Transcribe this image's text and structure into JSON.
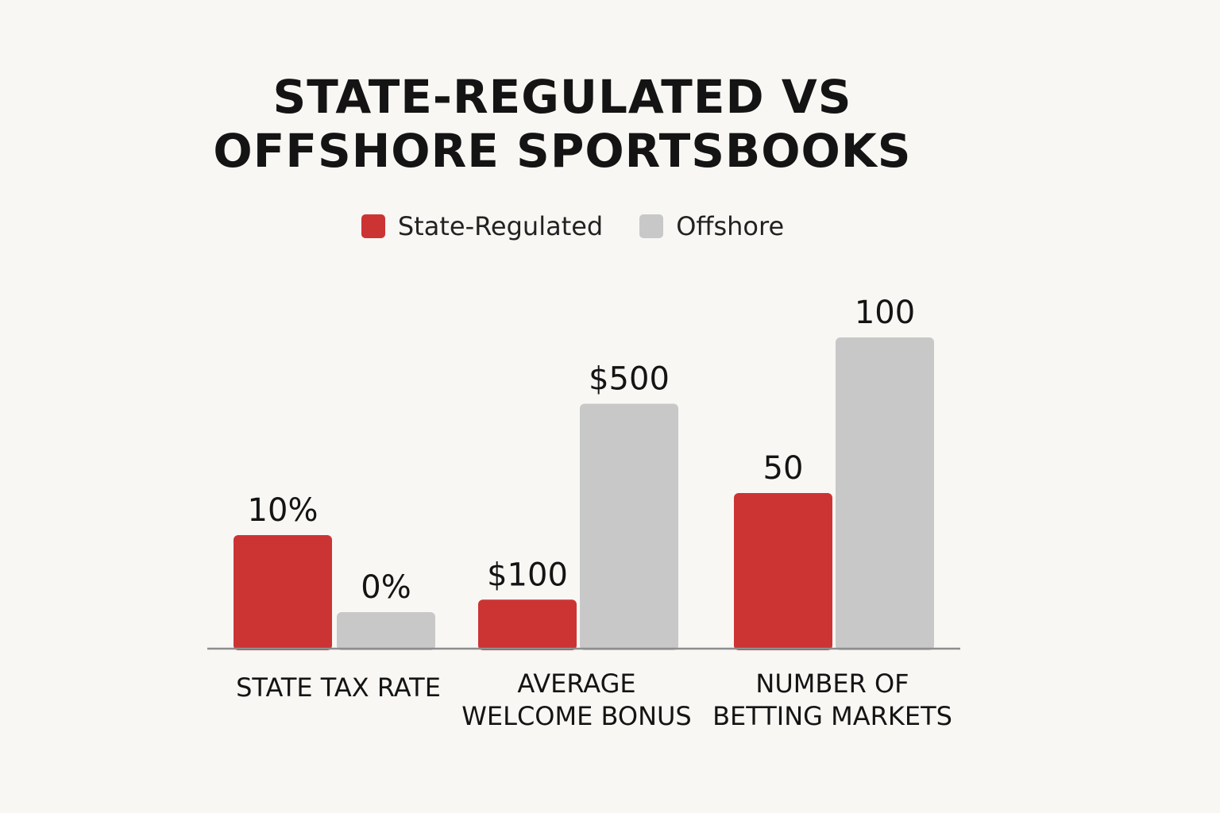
{
  "title_lines": [
    "STATE-REGULATED VS",
    "OFFSHORE SPORTSBOOKS"
  ],
  "colors": {
    "state_regulated": "#cc3434",
    "offshore": "#c8c8c8",
    "axis": "#8e8e8e",
    "text": "#141414"
  },
  "legend": [
    {
      "label": "State-Regulated",
      "color": "#cc3434"
    },
    {
      "label": "Offshore",
      "color": "#c8c8c8"
    }
  ],
  "chart_data": {
    "type": "bar",
    "title": "STATE-REGULATED VS OFFSHORE SPORTSBOOKS",
    "legend_position": "top-center",
    "grid": false,
    "y_axis_shown": false,
    "note": "Each category uses its own scale; bars are relative within the figure.",
    "groups": [
      {
        "category_lines": [
          "STATE TAX RATE"
        ],
        "bars": [
          {
            "series": "State-Regulated",
            "value": 10,
            "label": "10%"
          },
          {
            "series": "Offshore",
            "value": 0,
            "label": "0%"
          }
        ]
      },
      {
        "category_lines": [
          "AVERAGE",
          "WELCOME BONUS"
        ],
        "bars": [
          {
            "series": "State-Regulated",
            "value": 100,
            "label": "$100"
          },
          {
            "series": "Offshore",
            "value": 500,
            "label": "$500"
          }
        ]
      },
      {
        "category_lines": [
          "NUMBER OF",
          "BETTING MARKETS"
        ],
        "bars": [
          {
            "series": "State-Regulated",
            "value": 50,
            "label": "50"
          },
          {
            "series": "Offshore",
            "value": 100,
            "label": "100"
          }
        ]
      }
    ]
  }
}
